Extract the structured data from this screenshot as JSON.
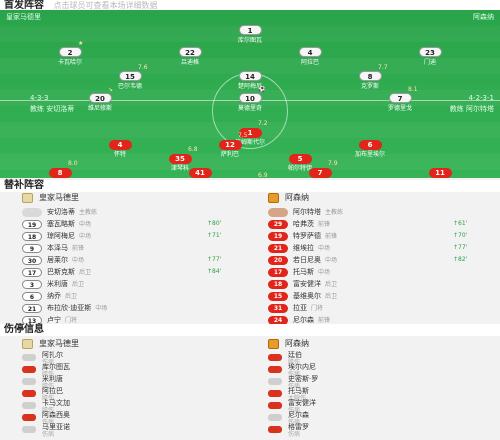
{
  "lineup": {
    "title": "首发阵容",
    "subtitle": "点击球员可查看本场详细数据",
    "home_team": "皇家马德里",
    "away_team": "阿森纳",
    "home_formation": "4-3-3",
    "away_formation": "4-2-3-1",
    "home_coach": "教练 安切洛蒂",
    "away_coach": "教练 阿尔特塔",
    "home_players": [
      {
        "num": "1",
        "name": "库尔图瓦",
        "tag": ""
      },
      {
        "num": "2",
        "name": "卡瓦哈尔",
        "tag": "★"
      },
      {
        "num": "22",
        "name": "吕迪格",
        "tag": ""
      },
      {
        "num": "4",
        "name": "阿拉巴",
        "tag": ""
      },
      {
        "num": "23",
        "name": "门迪",
        "tag": ""
      },
      {
        "num": "15",
        "name": "巴尔韦德",
        "tag": "7.6"
      },
      {
        "num": "14",
        "name": "楚阿梅尼",
        "tag": ""
      },
      {
        "num": "8",
        "name": "克罗斯",
        "tag": "7.7"
      },
      {
        "num": "20",
        "name": "维尼修斯",
        "tag": "↘"
      },
      {
        "num": "10",
        "name": "莫德里奇",
        "tag": "⚽"
      },
      {
        "num": "7",
        "name": "罗德里戈",
        "tag": "8.1"
      }
    ],
    "away_players": [
      {
        "num": "1",
        "name": "拉姆斯代尔",
        "tag": "7.2"
      },
      {
        "num": "4",
        "name": "怀特",
        "tag": ""
      },
      {
        "num": "12",
        "name": "萨利巴",
        "tag": "7.5"
      },
      {
        "num": "6",
        "name": "加布里埃尔",
        "tag": ""
      },
      {
        "num": "35",
        "name": "津琴科",
        "tag": "6.8"
      },
      {
        "num": "5",
        "name": "帕尔特伊",
        "tag": ""
      },
      {
        "num": "8",
        "name": "厄德高",
        "tag": "8.0"
      },
      {
        "num": "41",
        "name": "赖斯",
        "tag": ""
      },
      {
        "num": "7",
        "name": "萨卡",
        "tag": "7.9"
      },
      {
        "num": "11",
        "name": "马丁内利",
        "tag": ""
      },
      {
        "num": "9",
        "name": "热苏斯",
        "tag": "6.9"
      }
    ]
  },
  "subs": {
    "title": "替补阵容",
    "home_team": "皇家马德里",
    "home_coach": "教练 安切洛蒂",
    "away_team": "阿森纳",
    "away_coach": "教练 阿尔特塔",
    "home": [
      {
        "num": "",
        "name": "安切洛蒂",
        "sub": "主教练",
        "time": ""
      },
      {
        "num": "19",
        "name": "塞瓦略斯",
        "sub": "中场",
        "time": "↑80'"
      },
      {
        "num": "18",
        "name": "琼阿梅尼",
        "sub": "中场",
        "time": "↑71'"
      },
      {
        "num": "9",
        "name": "本泽马",
        "sub": "前锋",
        "time": ""
      },
      {
        "num": "30",
        "name": "居莱尔",
        "sub": "中场",
        "time": "↑77'"
      },
      {
        "num": "17",
        "name": "巴斯克斯",
        "sub": "后卫",
        "time": "↑84'"
      },
      {
        "num": "3",
        "name": "米利唐",
        "sub": "后卫",
        "time": ""
      },
      {
        "num": "6",
        "name": "纳乔",
        "sub": "后卫",
        "time": ""
      },
      {
        "num": "21",
        "name": "布拉欣·迪亚斯",
        "sub": "中场",
        "time": ""
      },
      {
        "num": "13",
        "name": "卢宁",
        "sub": "门将",
        "time": ""
      }
    ],
    "away": [
      {
        "num": "",
        "name": "阿尔特塔",
        "sub": "主教练",
        "time": ""
      },
      {
        "num": "29",
        "name": "哈弗茨",
        "sub": "前锋",
        "time": "↑61'"
      },
      {
        "num": "19",
        "name": "特罗萨德",
        "sub": "前锋",
        "time": "↑70'"
      },
      {
        "num": "21",
        "name": "维埃拉",
        "sub": "中场",
        "time": "↑77'"
      },
      {
        "num": "20",
        "name": "若日尼奥",
        "sub": "中场",
        "time": "↑82'"
      },
      {
        "num": "17",
        "name": "托马斯",
        "sub": "中场",
        "time": ""
      },
      {
        "num": "18",
        "name": "富安健洋",
        "sub": "后卫",
        "time": ""
      },
      {
        "num": "15",
        "name": "基维奥尔",
        "sub": "后卫",
        "time": ""
      },
      {
        "num": "31",
        "name": "拉亚",
        "sub": "门将",
        "time": ""
      },
      {
        "num": "24",
        "name": "尼尔森",
        "sub": "前锋",
        "time": ""
      }
    ]
  },
  "injuries": {
    "title": "伤停信息",
    "home_team": "皇家马德里",
    "away_team": "阿森纳",
    "home": [
      {
        "name": "阿扎尔",
        "reason": "伤病",
        "icon": "grey"
      },
      {
        "name": "库尔图瓦",
        "reason": "膝伤",
        "icon": "red"
      },
      {
        "name": "米利唐",
        "reason": "膝伤",
        "icon": "grey"
      },
      {
        "name": "阿拉巴",
        "reason": "膝伤",
        "icon": "red"
      },
      {
        "name": "卡马文加",
        "reason": "膝伤",
        "icon": "grey"
      },
      {
        "name": "阿森西奥",
        "reason": "伤病",
        "icon": "red"
      },
      {
        "name": "马里亚诺",
        "reason": "伤病",
        "icon": "grey"
      }
    ],
    "away": [
      {
        "name": "廷伯",
        "reason": "膝伤",
        "icon": "red"
      },
      {
        "name": "埃尔内尼",
        "reason": "伤病",
        "icon": "red"
      },
      {
        "name": "史密斯·罗",
        "reason": "伤病",
        "icon": "grey"
      },
      {
        "name": "托马斯",
        "reason": "大腿伤",
        "icon": "red"
      },
      {
        "name": "富安健洋",
        "reason": "伤病",
        "icon": "red"
      },
      {
        "name": "尼尔森",
        "reason": "伤病",
        "icon": "grey"
      },
      {
        "name": "格雷罗",
        "reason": "伤病",
        "icon": "red"
      }
    ]
  }
}
